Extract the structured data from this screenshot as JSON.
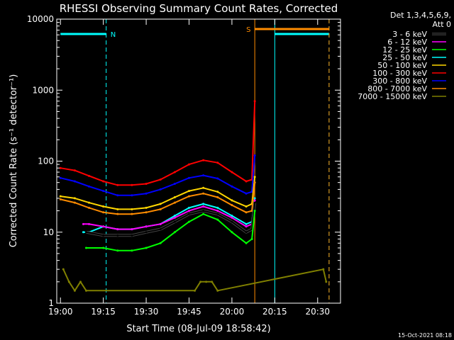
{
  "chart_data": {
    "type": "line",
    "title": "RHESSI Observing Summary Count Rates, Corrected",
    "xlabel": "Start Time (08-Jul-09 18:58:42)",
    "ylabel": "Corrected Count Rate (s⁻¹ detector⁻¹)",
    "y_scale": "log",
    "ylim": [
      1,
      10000
    ],
    "xlim": [
      "19:00",
      "20:38"
    ],
    "x_ticks": [
      "19:00",
      "19:15",
      "19:30",
      "19:45",
      "20:00",
      "20:15",
      "20:30"
    ],
    "y_ticks": [
      "1",
      "10",
      "100",
      "1000",
      "10000"
    ],
    "timestamp": "15-Oct-2021 08:18",
    "legend": {
      "position": "right",
      "header": [
        "Det 1,3,4,5,6,9,",
        "Att 0"
      ],
      "entries": [
        {
          "label": "3 - 6 keV",
          "color": "#000000"
        },
        {
          "label": "6 - 12 keV",
          "color": "#ff00ff"
        },
        {
          "label": "12 - 25 keV",
          "color": "#00ff00"
        },
        {
          "label": "25 - 50 keV",
          "color": "#00ffff"
        },
        {
          "label": "50 - 100 keV",
          "color": "#ffd700"
        },
        {
          "label": "100 - 300 keV",
          "color": "#ff0000"
        },
        {
          "label": "300 - 800 keV",
          "color": "#0000ff"
        },
        {
          "label": "800 - 7000 keV",
          "color": "#ff8c00"
        },
        {
          "label": "7000 - 15000 keV",
          "color": "#808000"
        }
      ]
    },
    "flags": [
      {
        "label": "N",
        "color": "#00ffff",
        "x_start": "19:00",
        "x_end": "19:16",
        "x_resume": "20:15",
        "x_end2": "20:34"
      },
      {
        "label": "S",
        "color": "#ff8c00",
        "x_start": "20:08",
        "x_end": "20:34"
      }
    ],
    "series": [
      {
        "name": "100 - 300 keV",
        "color": "#ff0000",
        "x": [
          "19:00",
          "19:05",
          "19:10",
          "19:15",
          "19:20",
          "19:25",
          "19:30",
          "19:35",
          "19:40",
          "19:45",
          "19:50",
          "19:55",
          "20:00",
          "20:05",
          "20:07",
          "20:08"
        ],
        "values": [
          80,
          74,
          62,
          52,
          46,
          46,
          48,
          55,
          70,
          90,
          103,
          95,
          70,
          52,
          55,
          700
        ]
      },
      {
        "name": "300 - 800 keV",
        "color": "#0000ff",
        "x": [
          "19:00",
          "19:05",
          "19:10",
          "19:15",
          "19:20",
          "19:25",
          "19:30",
          "19:35",
          "19:40",
          "19:45",
          "19:50",
          "19:55",
          "20:00",
          "20:05",
          "20:07",
          "20:08"
        ],
        "values": [
          58,
          52,
          44,
          38,
          33,
          33,
          35,
          40,
          48,
          58,
          63,
          57,
          44,
          35,
          37,
          120
        ]
      },
      {
        "name": "50 - 100 keV",
        "color": "#ffd700",
        "x": [
          "19:00",
          "19:05",
          "19:10",
          "19:15",
          "19:20",
          "19:25",
          "19:30",
          "19:35",
          "19:40",
          "19:45",
          "19:50",
          "19:55",
          "20:00",
          "20:05",
          "20:07",
          "20:08"
        ],
        "values": [
          32,
          30,
          26,
          23,
          21,
          21,
          22,
          25,
          31,
          38,
          42,
          37,
          28,
          23,
          25,
          60
        ]
      },
      {
        "name": "800 - 7000 keV",
        "color": "#ff8c00",
        "x": [
          "19:00",
          "19:05",
          "19:10",
          "19:15",
          "19:20",
          "19:25",
          "19:30",
          "19:35",
          "19:40",
          "19:45",
          "19:50",
          "19:55",
          "20:00",
          "20:05",
          "20:07",
          "20:08"
        ],
        "values": [
          29,
          26,
          22,
          19,
          18,
          18,
          19,
          21,
          26,
          32,
          35,
          31,
          24,
          19,
          20,
          50
        ]
      },
      {
        "name": "25 - 50 keV",
        "color": "#00ffff",
        "x": [
          "19:08",
          "19:10",
          "19:15",
          "19:20",
          "19:25",
          "19:30",
          "19:35",
          "19:40",
          "19:45",
          "19:50",
          "19:55",
          "20:00",
          "20:05",
          "20:07",
          "20:08"
        ],
        "values": [
          10,
          10,
          12,
          11,
          11,
          12,
          13,
          17,
          22,
          25,
          22,
          17,
          13,
          14,
          30
        ]
      },
      {
        "name": "6 - 12 keV",
        "color": "#ff00ff",
        "x": [
          "19:08",
          "19:10",
          "19:15",
          "19:20",
          "19:25",
          "19:30",
          "19:35",
          "19:40",
          "19:45",
          "19:50",
          "19:55",
          "20:00",
          "20:05",
          "20:07",
          "20:08"
        ],
        "values": [
          13,
          13,
          12,
          11,
          11,
          12,
          13,
          16,
          20,
          23,
          20,
          16,
          12,
          13,
          28
        ]
      },
      {
        "name": "3 - 6 keV",
        "color": "#000000",
        "x": [
          "19:09",
          "19:15",
          "19:20",
          "19:25",
          "19:30",
          "19:35",
          "19:40",
          "19:45",
          "19:50",
          "19:55",
          "20:00",
          "20:05",
          "20:07",
          "20:08"
        ],
        "values": [
          10,
          9,
          9,
          9,
          10,
          11,
          14,
          18,
          20,
          18,
          14,
          10,
          11,
          26
        ]
      },
      {
        "name": "12 - 25 keV",
        "color": "#00ff00",
        "x": [
          "19:09",
          "19:15",
          "19:20",
          "19:25",
          "19:30",
          "19:35",
          "19:40",
          "19:45",
          "19:50",
          "19:55",
          "20:00",
          "20:05",
          "20:07",
          "20:08"
        ],
        "values": [
          6,
          6,
          5.5,
          5.5,
          6,
          7,
          10,
          14,
          18,
          15,
          10,
          7,
          8,
          20
        ]
      },
      {
        "name": "7000 - 15000 keV",
        "color": "#808000",
        "x": [
          "19:01",
          "19:03",
          "19:05",
          "19:07",
          "19:09",
          "19:47",
          "19:49",
          "19:51",
          "19:53",
          "19:55",
          "20:32",
          "20:33"
        ],
        "values": [
          3,
          2,
          1.5,
          2,
          1.5,
          1.5,
          2,
          2,
          2,
          1.5,
          3,
          2
        ]
      }
    ]
  }
}
